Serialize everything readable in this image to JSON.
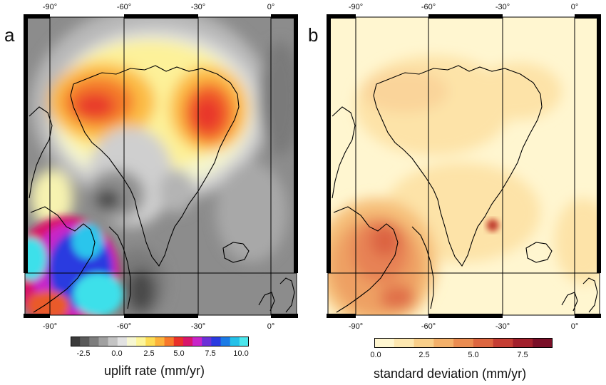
{
  "panel_a": {
    "letter": "a",
    "top_ticks": [
      "-90°",
      "-60°",
      "-30°",
      "0°"
    ],
    "bottom_ticks": [
      "-90°",
      "-60°",
      "-30°",
      "0°"
    ],
    "colorbar": {
      "ticks": [
        "-2.5",
        "0.0",
        "2.5",
        "5.0",
        "7.5",
        "10.0"
      ],
      "title": "uplift rate (mm/yr)",
      "colors": [
        "#3a3a3a",
        "#5a5a5a",
        "#7d7d7d",
        "#a0a0a0",
        "#c4c4c4",
        "#e2e2e2",
        "#f7f7d2",
        "#fdf59a",
        "#fddc54",
        "#fcb13a",
        "#f7782a",
        "#e9312a",
        "#d8166b",
        "#c825c8",
        "#6b31d8",
        "#2a3be0",
        "#1b7be6",
        "#24c0e8",
        "#4be6ec"
      ]
    }
  },
  "panel_b": {
    "letter": "b",
    "top_ticks": [
      "-90°",
      "-60°",
      "-30°",
      "0°"
    ],
    "bottom_ticks": [
      "-90°",
      "-60°",
      "-30°",
      "0°"
    ],
    "colorbar": {
      "ticks": [
        "0.0",
        "2.5",
        "5.0",
        "7.5"
      ],
      "title": "standard deviation (mm/yr)",
      "colors": [
        "#fff6d0",
        "#fde7b0",
        "#f9cf8a",
        "#f3b06a",
        "#ea8c51",
        "#dd6640",
        "#c53e34",
        "#a2202c",
        "#7a0f28"
      ]
    }
  }
}
